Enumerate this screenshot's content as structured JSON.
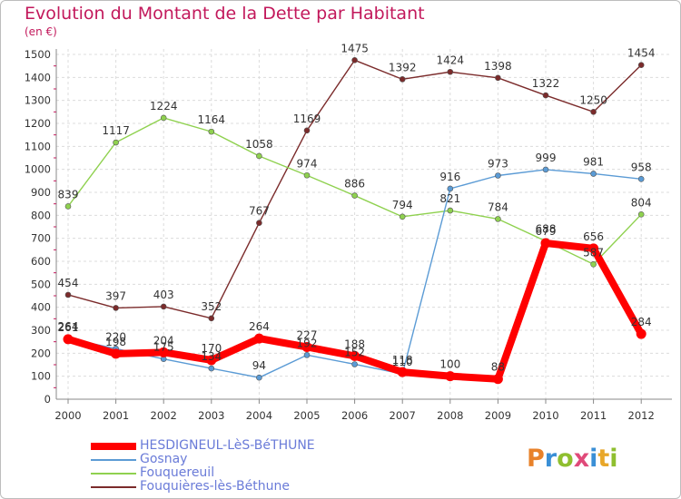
{
  "header": {
    "title": "Evolution du Montant de la Dette par Habitant",
    "unit": "(en €)"
  },
  "chart_data": {
    "type": "line",
    "title": "Evolution du Montant de la Dette par Habitant",
    "subtitle": "(en €)",
    "x": [
      "2000",
      "2001",
      "2002",
      "2003",
      "2004",
      "2005",
      "2006",
      "2007",
      "2008",
      "2009",
      "2010",
      "2011",
      "2012"
    ],
    "ylim": [
      0,
      1500
    ],
    "yticks": [
      0,
      100,
      200,
      300,
      400,
      500,
      600,
      700,
      800,
      900,
      1000,
      1100,
      1200,
      1300,
      1400,
      1500
    ],
    "grid": true,
    "legend_position": "bottom-left",
    "series": [
      {
        "name": "HESDIGNEUL-LèS-BéTHUNE",
        "color": "#ff0000",
        "values": [
          261,
          198,
          204,
          170,
          264,
          227,
          188,
          118,
          100,
          88,
          679,
          656,
          284
        ]
      },
      {
        "name": "Gosnay",
        "color": "#5b9bd5",
        "values": [
          264,
          220,
          175,
          134,
          94,
          192,
          152,
          110,
          916,
          973,
          999,
          981,
          958
        ]
      },
      {
        "name": "Fouquereuil",
        "color": "#8fd14f",
        "values": [
          839,
          1117,
          1224,
          1164,
          1058,
          974,
          886,
          794,
          821,
          784,
          688,
          587,
          804
        ]
      },
      {
        "name": "Fouquières-lès-Béthune",
        "color": "#7b2b2b",
        "values": [
          454,
          397,
          403,
          352,
          767,
          1169,
          1475,
          1392,
          1424,
          1398,
          1322,
          1250,
          1454
        ]
      }
    ]
  },
  "logo": {
    "text": "Proxiti"
  }
}
